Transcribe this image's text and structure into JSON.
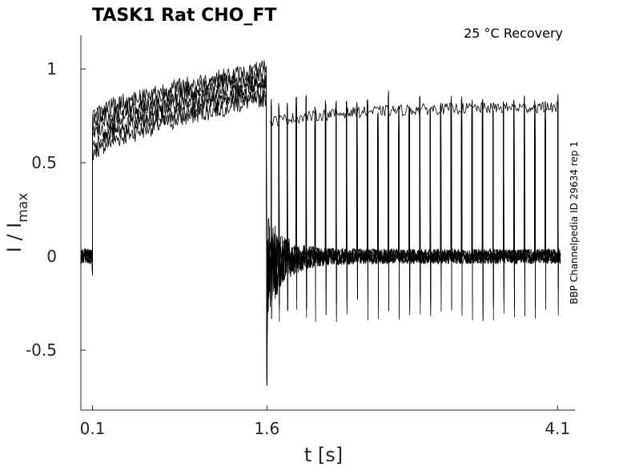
{
  "chart_data": {
    "type": "line",
    "title": "TASK1  Rat  CHO_FT",
    "subtitle": "25 °C  Recovery",
    "side_label": "BBP Channelpedia ID 29634 rep 1",
    "xlabel": "t [s]",
    "ylabel_main": "I / I",
    "ylabel_sub": "max",
    "xlim": [
      0.0,
      4.25
    ],
    "ylim": [
      -0.82,
      1.18
    ],
    "x_ticks": [
      0.1,
      1.6,
      4.1
    ],
    "x_tick_labels": [
      "0.1",
      "1.6",
      "4.1"
    ],
    "y_ticks": [
      1,
      0.5,
      0,
      -0.5
    ],
    "y_tick_labels": [
      "1",
      "0.5",
      "0",
      "-0.5"
    ],
    "grid": false,
    "series_color": "#000000",
    "protocol": {
      "prepulse_start": 0.1,
      "prepulse_end": 1.6,
      "test_pulse_times": [
        1.63,
        1.7,
        1.77,
        1.85,
        1.93,
        2.01,
        2.1,
        2.19,
        2.28,
        2.37,
        2.46,
        2.55,
        2.64,
        2.73,
        2.82,
        2.91,
        3.0,
        3.09,
        3.18,
        3.27,
        3.36,
        3.45,
        3.54,
        3.63,
        3.72,
        3.81,
        3.9,
        3.99,
        4.1
      ],
      "sweeps_during_prepulse": 6,
      "prepulse_current_start": [
        0.55,
        0.75
      ],
      "prepulse_current_end": [
        0.85,
        1.0
      ],
      "test_pulse_level": [
        0.65,
        0.85
      ],
      "baseline_level": 0.0,
      "min_peak": -0.65
    }
  }
}
